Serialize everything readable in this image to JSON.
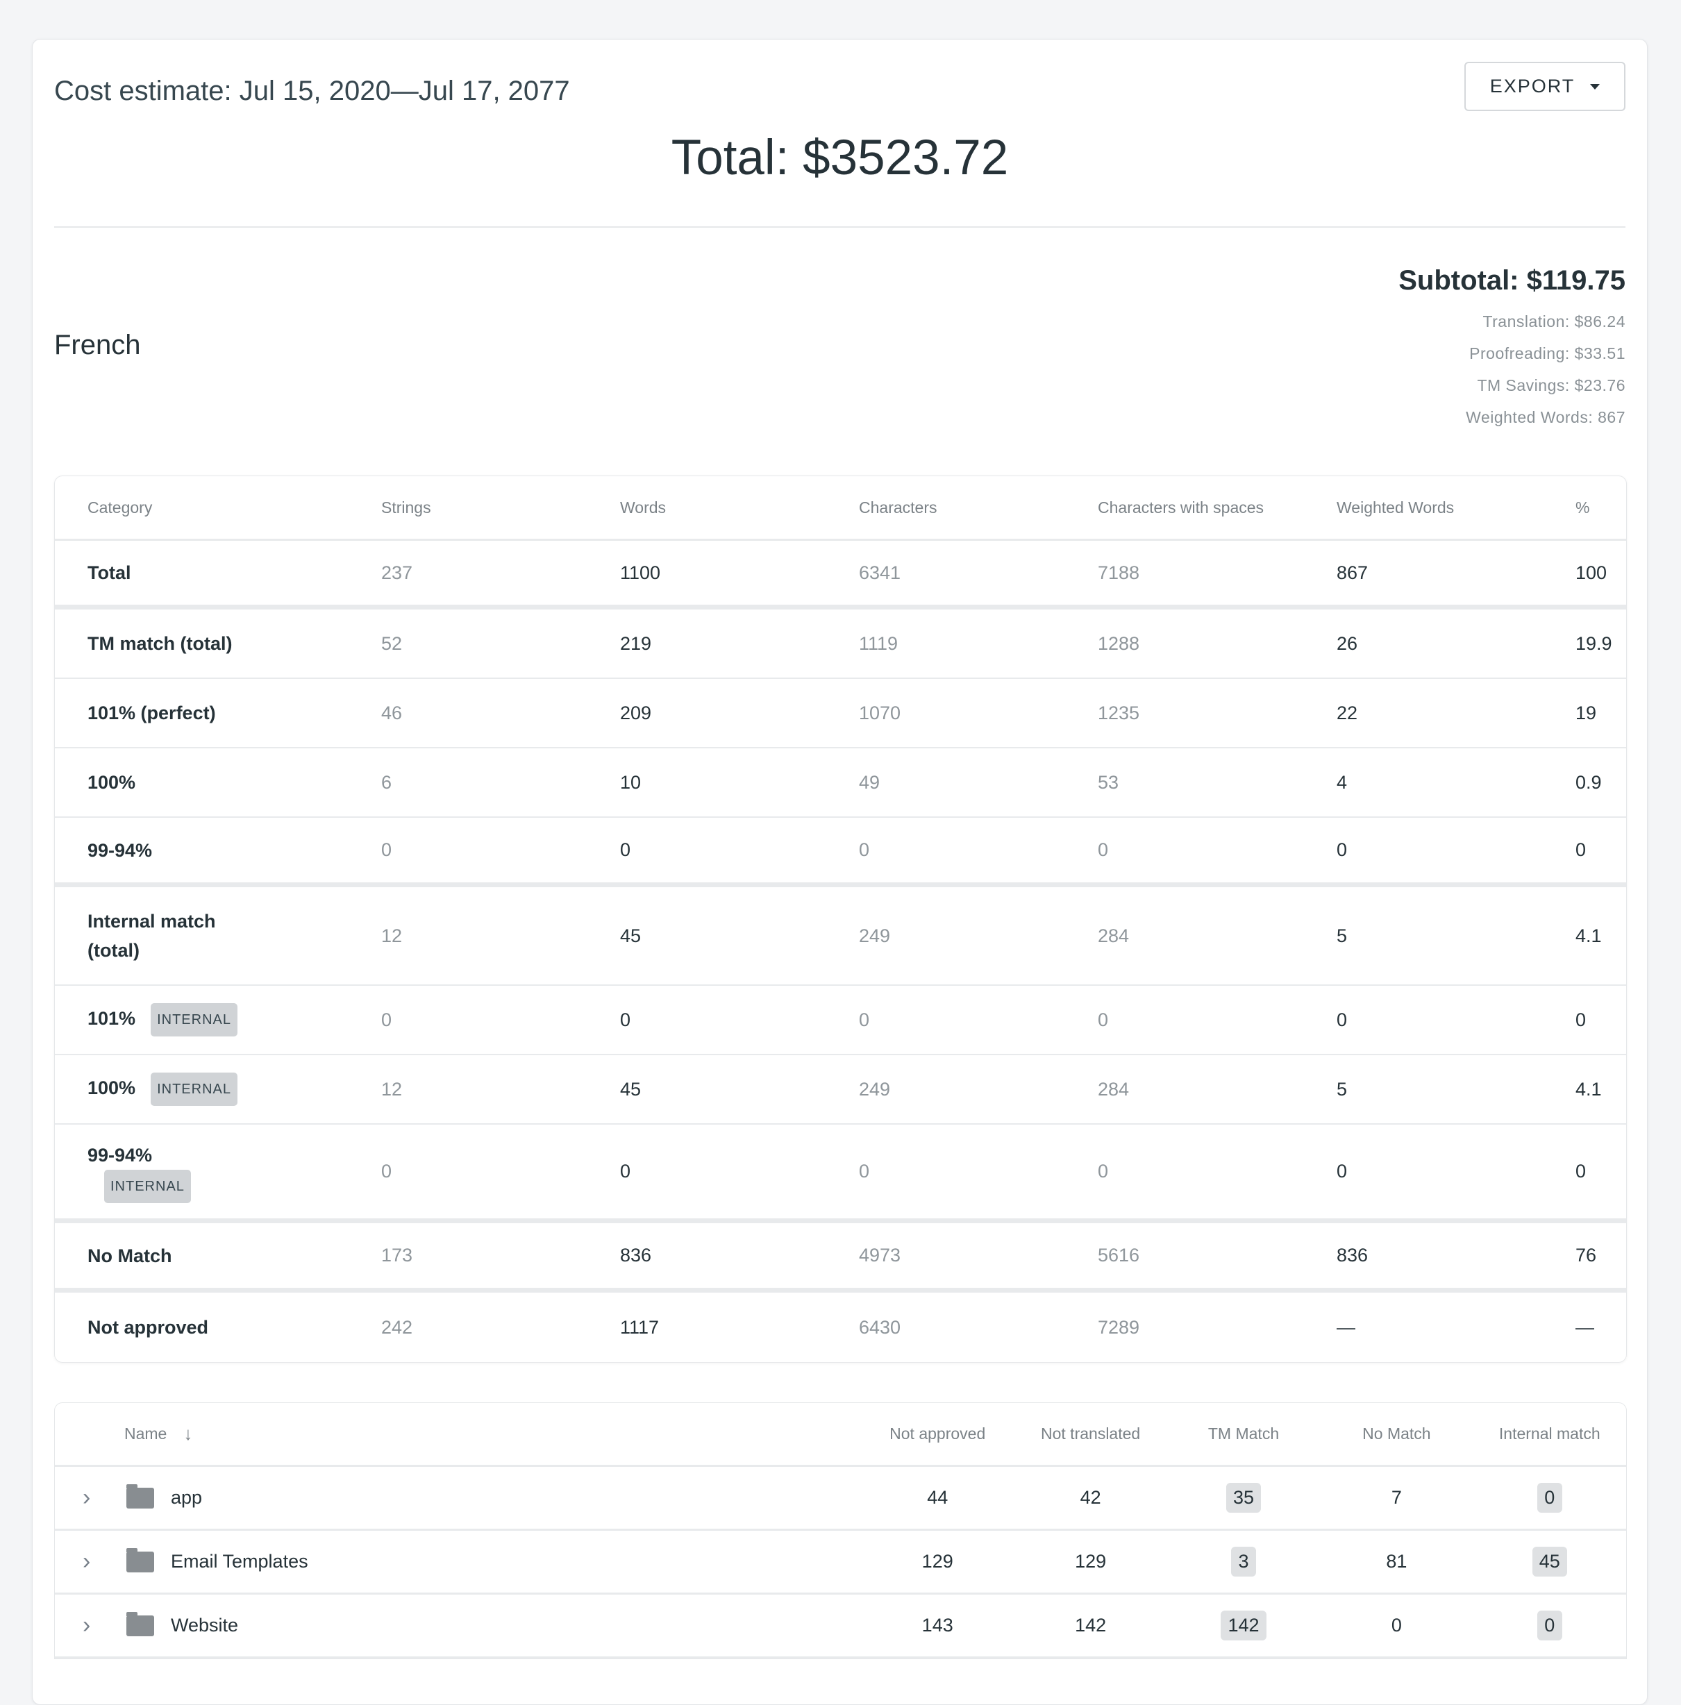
{
  "header": {
    "title": "Cost estimate: Jul 15, 2020—Jul 17, 2077",
    "export_label": "EXPORT",
    "total": "Total: $3523.72"
  },
  "language": {
    "name": "French",
    "subtotal": "Subtotal: $119.75",
    "translation": "Translation: $86.24",
    "proofreading": "Proofreading: $33.51",
    "tm_savings": "TM Savings: $23.76",
    "weighted_words": "Weighted Words: 867"
  },
  "stats": {
    "columns": [
      "Category",
      "Strings",
      "Words",
      "Characters",
      "Characters with spaces",
      "Weighted Words",
      "%"
    ],
    "rows": [
      {
        "label": "Total",
        "tag": "",
        "values": [
          "237",
          "1100",
          "6341",
          "7188",
          "867",
          "100"
        ]
      },
      {
        "label": "TM match (total)",
        "tag": "",
        "values": [
          "52",
          "219",
          "1119",
          "1288",
          "26",
          "19.9"
        ]
      },
      {
        "label": "101% (perfect)",
        "tag": "",
        "values": [
          "46",
          "209",
          "1070",
          "1235",
          "22",
          "19"
        ]
      },
      {
        "label": "100%",
        "tag": "",
        "values": [
          "6",
          "10",
          "49",
          "53",
          "4",
          "0.9"
        ]
      },
      {
        "label": "99-94%",
        "tag": "",
        "values": [
          "0",
          "0",
          "0",
          "0",
          "0",
          "0"
        ]
      },
      {
        "label": "Internal match (total)",
        "tag": "",
        "values": [
          "12",
          "45",
          "249",
          "284",
          "5",
          "4.1"
        ]
      },
      {
        "label": "101%",
        "tag": "INTERNAL",
        "values": [
          "0",
          "0",
          "0",
          "0",
          "0",
          "0"
        ]
      },
      {
        "label": "100%",
        "tag": "INTERNAL",
        "values": [
          "12",
          "45",
          "249",
          "284",
          "5",
          "4.1"
        ]
      },
      {
        "label": "99-94%",
        "tag": "INTERNAL",
        "values": [
          "0",
          "0",
          "0",
          "0",
          "0",
          "0"
        ]
      },
      {
        "label": "No Match",
        "tag": "",
        "values": [
          "173",
          "836",
          "4973",
          "5616",
          "836",
          "76"
        ]
      },
      {
        "label": "Not approved",
        "tag": "",
        "values": [
          "242",
          "1117",
          "6430",
          "7289",
          "—",
          "—"
        ]
      }
    ]
  },
  "files": {
    "columns": [
      "Name",
      "Not approved",
      "Not translated",
      "TM Match",
      "No Match",
      "Internal match"
    ],
    "rows": [
      {
        "name": "app",
        "values": [
          "44",
          "42",
          "35",
          "7",
          "0"
        ]
      },
      {
        "name": "Email Templates",
        "values": [
          "129",
          "129",
          "3",
          "81",
          "45"
        ]
      },
      {
        "name": "Website",
        "values": [
          "143",
          "142",
          "142",
          "0",
          "0"
        ]
      }
    ]
  }
}
